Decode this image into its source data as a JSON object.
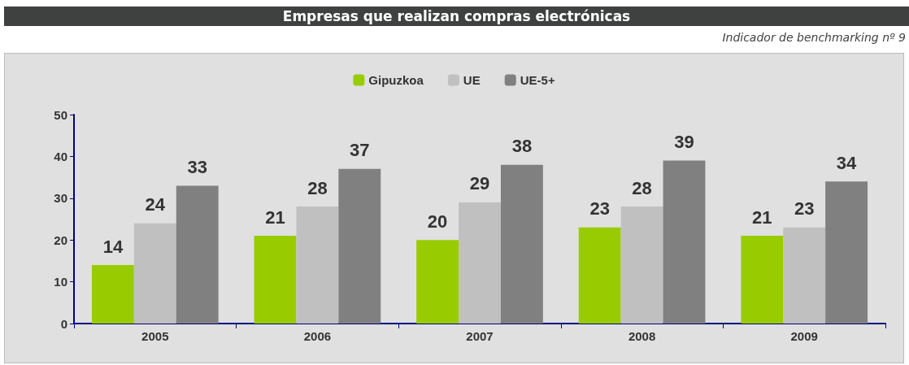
{
  "chart_data": {
    "type": "bar",
    "title": "Empresas que realizan compras electrónicas",
    "subtitle": "Indicador de benchmarking nº 9",
    "categories": [
      "2005",
      "2006",
      "2007",
      "2008",
      "2009"
    ],
    "series": [
      {
        "name": "Gipuzkoa",
        "color": "#99cc00",
        "values": [
          14,
          21,
          20,
          23,
          21
        ]
      },
      {
        "name": "UE",
        "color": "#c0c0c0",
        "values": [
          24,
          28,
          29,
          28,
          23
        ]
      },
      {
        "name": "UE-5+",
        "color": "#808080",
        "values": [
          33,
          37,
          38,
          39,
          34
        ]
      }
    ],
    "ylim": [
      0,
      50
    ],
    "yticks": [
      0,
      10,
      20,
      30,
      40,
      50
    ],
    "legend": "top",
    "data_labels": true
  }
}
